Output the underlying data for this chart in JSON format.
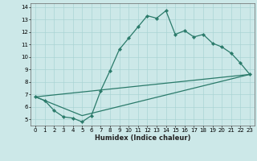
{
  "title": "",
  "xlabel": "Humidex (Indice chaleur)",
  "bg_color": "#cce8e8",
  "line_color": "#2a7a6a",
  "grid_color": "#aad4d4",
  "xlim": [
    -0.5,
    23.5
  ],
  "ylim": [
    4.5,
    14.3
  ],
  "xticks": [
    0,
    1,
    2,
    3,
    4,
    5,
    6,
    7,
    8,
    9,
    10,
    11,
    12,
    13,
    14,
    15,
    16,
    17,
    18,
    19,
    20,
    21,
    22,
    23
  ],
  "yticks": [
    5,
    6,
    7,
    8,
    9,
    10,
    11,
    12,
    13,
    14
  ],
  "line1_x": [
    0,
    1,
    2,
    3,
    4,
    5,
    6,
    7,
    8,
    9,
    10,
    11,
    12,
    13,
    14,
    15,
    16,
    17,
    18,
    19,
    20,
    21,
    22,
    23
  ],
  "line1_y": [
    6.8,
    6.5,
    5.7,
    5.2,
    5.1,
    4.8,
    5.3,
    7.3,
    8.9,
    10.6,
    11.5,
    12.4,
    13.3,
    13.1,
    13.7,
    11.8,
    12.1,
    11.6,
    11.8,
    11.1,
    10.8,
    10.3,
    9.5,
    8.6
  ],
  "line2_x": [
    0,
    23
  ],
  "line2_y": [
    6.8,
    8.6
  ],
  "line3_x": [
    0,
    5,
    23
  ],
  "line3_y": [
    6.8,
    5.3,
    8.6
  ],
  "tick_fontsize": 5.0,
  "xlabel_fontsize": 6.0,
  "marker_size": 2.2,
  "linewidth": 0.9
}
